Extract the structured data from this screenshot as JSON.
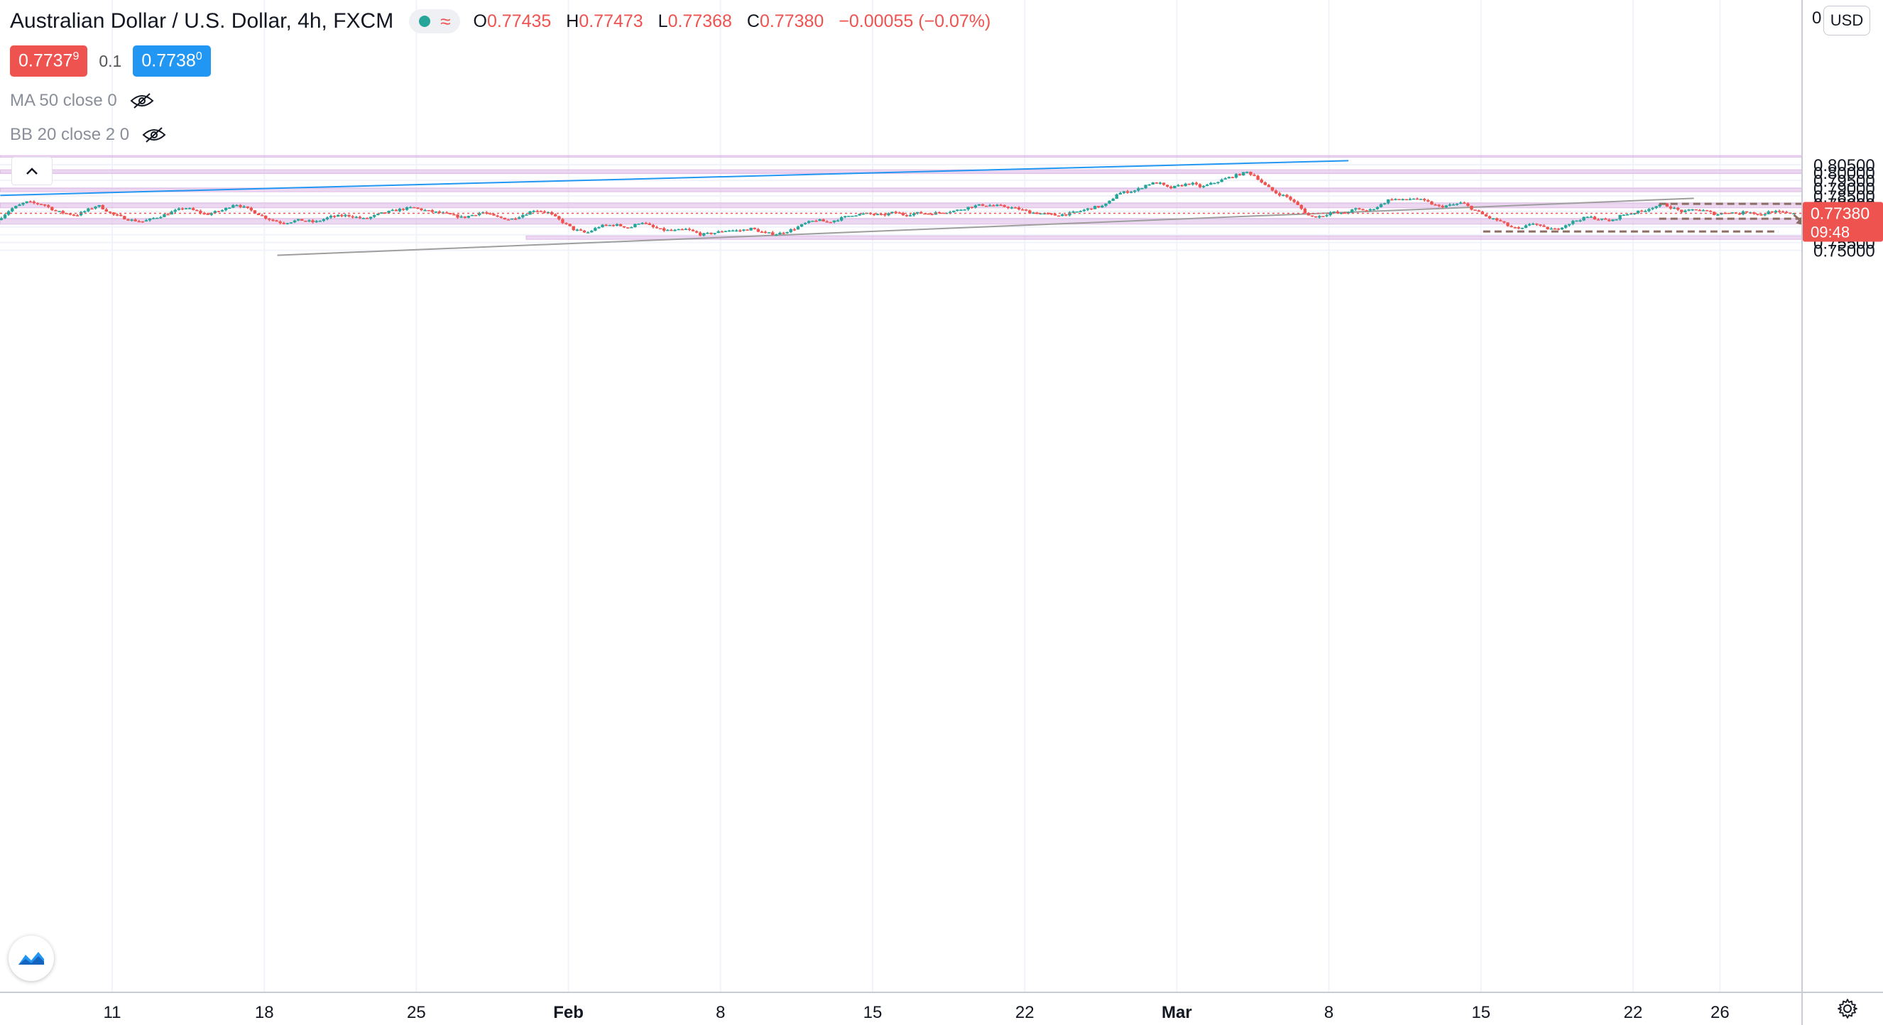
{
  "header": {
    "title": "Australian Dollar / U.S. Dollar",
    "interval": "4h",
    "exchange": "FXCM",
    "wave_symbol": "≈",
    "open_label": "O",
    "open": "0.77435",
    "high_label": "H",
    "high": "0.77473",
    "low_label": "L",
    "low": "0.77368",
    "close_label": "C",
    "close": "0.77380",
    "change": "−0.00055 (−0.07%)",
    "sell_price": "0.7737",
    "sell_price_sup": "9",
    "spread": "0.1",
    "buy_price": "0.7738",
    "buy_price_sup": "0"
  },
  "indicators": [
    {
      "label": "MA 50 close 0",
      "icon": "eye-off-icon"
    },
    {
      "label": "BB 20 close 2 0",
      "icon": "eye-off-icon"
    }
  ],
  "price_axis": {
    "currency": "USD",
    "top_label": "0",
    "current_price": "0.77380",
    "countdown": "09:48"
  },
  "colors": {
    "up": "#26a69a",
    "down": "#ef5350",
    "zone": "#e1bee7",
    "trend_blue": "#2196f3",
    "trend_gray": "#9e9e9e",
    "dash_brown": "#8d6e63"
  },
  "chart_data": {
    "type": "candlestick",
    "instrument": "AUDUSD",
    "timeframe": "4h",
    "y_ticks": [
      0.75,
      0.755,
      0.76,
      0.765,
      0.77,
      0.775,
      0.78,
      0.785,
      0.79,
      0.795,
      0.8,
      0.805
    ],
    "y_tick_labels": [
      "0.75000",
      "0.75500",
      "0.76000",
      "0.76500",
      "0.77000",
      "0.77500",
      "0.78000",
      "0.78500",
      "0.79000",
      "0.79500",
      "0.80000",
      "0.80500"
    ],
    "ylim": [
      0.7469,
      0.8109
    ],
    "x_tick_labels": [
      "11",
      "18",
      "25",
      "Feb",
      "8",
      "15",
      "22",
      "Mar",
      "8",
      "15",
      "22",
      "26"
    ],
    "x_tick_days": [
      11,
      18,
      25,
      32,
      39,
      46,
      53,
      60,
      67,
      74,
      81,
      85
    ],
    "day_origin_label": "Jan",
    "xlim_days": [
      5.85,
      88.4
    ],
    "current_price": 0.7738,
    "price_path": [
      [
        5.9,
        0.7695
      ],
      [
        6.5,
        0.7765
      ],
      [
        7.2,
        0.781
      ],
      [
        8.0,
        0.7795
      ],
      [
        8.6,
        0.775
      ],
      [
        9.5,
        0.7725
      ],
      [
        10.5,
        0.779
      ],
      [
        11.2,
        0.773
      ],
      [
        12.0,
        0.7695
      ],
      [
        12.6,
        0.7685
      ],
      [
        13.5,
        0.7725
      ],
      [
        14.5,
        0.7775
      ],
      [
        15.5,
        0.773
      ],
      [
        16.3,
        0.776
      ],
      [
        16.8,
        0.78
      ],
      [
        17.5,
        0.776
      ],
      [
        18.3,
        0.7705
      ],
      [
        19.0,
        0.7675
      ],
      [
        19.8,
        0.7695
      ],
      [
        20.5,
        0.768
      ],
      [
        21.2,
        0.7715
      ],
      [
        22.0,
        0.7725
      ],
      [
        22.8,
        0.77
      ],
      [
        23.5,
        0.7735
      ],
      [
        24.3,
        0.776
      ],
      [
        25.0,
        0.7775
      ],
      [
        25.7,
        0.7752
      ],
      [
        26.5,
        0.7735
      ],
      [
        27.3,
        0.771
      ],
      [
        28.2,
        0.7745
      ],
      [
        28.8,
        0.7715
      ],
      [
        29.5,
        0.7698
      ],
      [
        30.2,
        0.7735
      ],
      [
        30.6,
        0.776
      ],
      [
        31.2,
        0.7745
      ],
      [
        31.8,
        0.769
      ],
      [
        32.4,
        0.7635
      ],
      [
        33.0,
        0.761
      ],
      [
        33.6,
        0.7655
      ],
      [
        34.3,
        0.7665
      ],
      [
        35.0,
        0.7645
      ],
      [
        35.5,
        0.7685
      ],
      [
        36.0,
        0.765
      ],
      [
        36.5,
        0.763
      ],
      [
        37.0,
        0.7625
      ],
      [
        37.6,
        0.7635
      ],
      [
        38.3,
        0.76
      ],
      [
        39.0,
        0.7615
      ],
      [
        39.5,
        0.763
      ],
      [
        40.0,
        0.7625
      ],
      [
        40.6,
        0.764
      ],
      [
        41.2,
        0.761
      ],
      [
        41.8,
        0.7605
      ],
      [
        42.5,
        0.7635
      ],
      [
        43.1,
        0.7675
      ],
      [
        43.6,
        0.7695
      ],
      [
        44.1,
        0.768
      ],
      [
        44.7,
        0.7705
      ],
      [
        45.2,
        0.7728
      ],
      [
        45.9,
        0.7735
      ],
      [
        46.6,
        0.7725
      ],
      [
        47.2,
        0.7745
      ],
      [
        47.6,
        0.7728
      ],
      [
        48.3,
        0.774
      ],
      [
        48.8,
        0.7735
      ],
      [
        49.4,
        0.7745
      ],
      [
        50.0,
        0.7755
      ],
      [
        50.6,
        0.7778
      ],
      [
        51.2,
        0.7792
      ],
      [
        51.7,
        0.7788
      ],
      [
        52.3,
        0.778
      ],
      [
        52.9,
        0.7765
      ],
      [
        53.4,
        0.7745
      ],
      [
        54.0,
        0.7735
      ],
      [
        54.6,
        0.7725
      ],
      [
        55.2,
        0.7735
      ],
      [
        55.8,
        0.7755
      ],
      [
        56.3,
        0.7775
      ],
      [
        56.8,
        0.7785
      ],
      [
        57.1,
        0.7815
      ],
      [
        57.4,
        0.7862
      ],
      [
        57.8,
        0.7875
      ],
      [
        58.3,
        0.7885
      ],
      [
        58.8,
        0.7925
      ],
      [
        59.3,
        0.7935
      ],
      [
        59.8,
        0.7898
      ],
      [
        60.3,
        0.7915
      ],
      [
        60.8,
        0.7932
      ],
      [
        61.3,
        0.7905
      ],
      [
        61.8,
        0.793
      ],
      [
        62.3,
        0.7955
      ],
      [
        62.8,
        0.7978
      ],
      [
        63.4,
        0.8002
      ],
      [
        63.8,
        0.7975
      ],
      [
        64.2,
        0.792
      ],
      [
        64.7,
        0.787
      ],
      [
        65.3,
        0.784
      ],
      [
        65.8,
        0.778
      ],
      [
        66.3,
        0.7715
      ],
      [
        66.8,
        0.772
      ],
      [
        67.3,
        0.7745
      ],
      [
        67.8,
        0.7735
      ],
      [
        68.4,
        0.7765
      ],
      [
        69.0,
        0.7755
      ],
      [
        69.5,
        0.7788
      ],
      [
        70.0,
        0.7832
      ],
      [
        70.6,
        0.7822
      ],
      [
        71.1,
        0.7835
      ],
      [
        71.7,
        0.781
      ],
      [
        72.2,
        0.778
      ],
      [
        72.8,
        0.779
      ],
      [
        73.3,
        0.7805
      ],
      [
        73.9,
        0.7755
      ],
      [
        74.5,
        0.771
      ],
      [
        75.0,
        0.769
      ],
      [
        75.5,
        0.765
      ],
      [
        76.0,
        0.7632
      ],
      [
        76.5,
        0.768
      ],
      [
        77.0,
        0.7645
      ],
      [
        77.6,
        0.7633
      ],
      [
        78.0,
        0.766
      ],
      [
        78.5,
        0.769
      ],
      [
        79.1,
        0.7715
      ],
      [
        79.6,
        0.77
      ],
      [
        80.2,
        0.7688
      ],
      [
        80.6,
        0.7725
      ],
      [
        81.1,
        0.774
      ],
      [
        81.6,
        0.7752
      ],
      [
        82.1,
        0.778
      ],
      [
        82.6,
        0.7795
      ],
      [
        83.0,
        0.777
      ],
      [
        83.5,
        0.7745
      ],
      [
        84.0,
        0.7765
      ],
      [
        84.5,
        0.7752
      ],
      [
        85.0,
        0.773
      ],
      [
        85.5,
        0.7748
      ],
      [
        86.0,
        0.7735
      ],
      [
        86.5,
        0.7752
      ],
      [
        87.0,
        0.7725
      ],
      [
        87.5,
        0.775
      ],
      [
        88.0,
        0.7742
      ],
      [
        88.4,
        0.7738
      ]
    ],
    "zones": [
      {
        "low": 0.7993,
        "high": 0.8018,
        "from_day": 5.85,
        "to_day": 111.0
      },
      {
        "low": 0.7876,
        "high": 0.79,
        "from_day": 5.85,
        "to_day": 111.0
      },
      {
        "low": 0.7773,
        "high": 0.7805,
        "from_day": 5.85,
        "to_day": 111.0
      },
      {
        "low": 0.7668,
        "high": 0.7705,
        "from_day": 5.85,
        "to_day": 111.0
      },
      {
        "low": 0.757,
        "high": 0.7593,
        "from_day": 30.05,
        "to_day": 111.0
      },
      {
        "low": 0.8098,
        "high": 0.8109,
        "from_day": 5.85,
        "to_day": 111.0
      }
    ],
    "trendlines": [
      {
        "color": "blue",
        "from": [
          5.85,
          0.7853
        ],
        "to": [
          67.9,
          0.8076
        ]
      },
      {
        "color": "gray",
        "from": [
          18.6,
          0.7468
        ],
        "to": [
          83.8,
          0.7834
        ]
      },
      {
        "color": "blue",
        "from": [
          102.0,
          0.7466
        ],
        "to": [
          106.0,
          0.7481
        ]
      }
    ],
    "dashed_levels": [
      {
        "price": 0.7799,
        "from_day": 82.2,
        "to_day": 90.3
      },
      {
        "price": 0.7703,
        "from_day": 82.2,
        "to_day": 89.2
      },
      {
        "price": 0.7621,
        "from_day": 74.1,
        "to_day": 87.7
      }
    ],
    "projection_arrow": {
      "from": [
        88.4,
        0.7728
      ],
      "to": [
        89.0,
        0.7655
      ]
    }
  }
}
